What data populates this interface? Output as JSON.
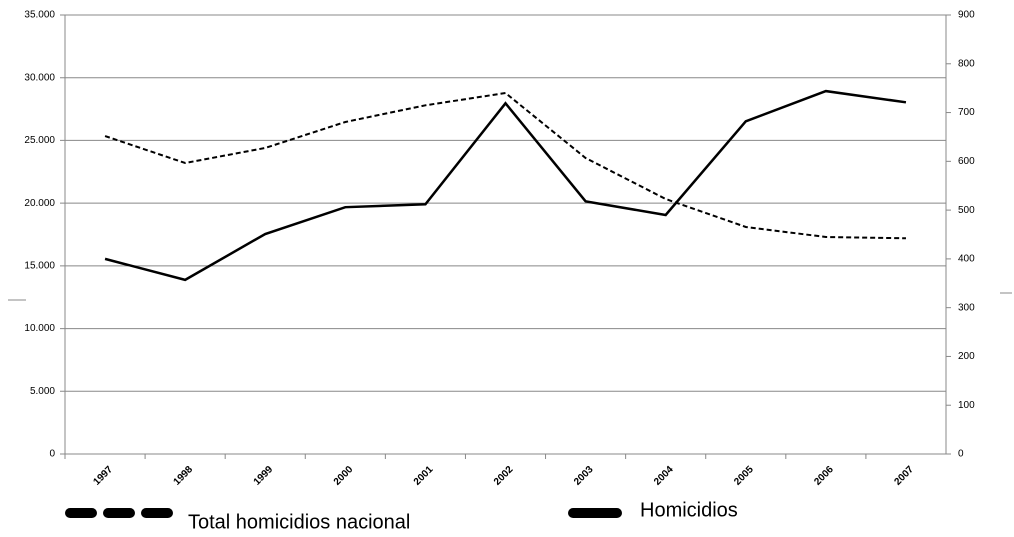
{
  "chart_data": {
    "type": "line",
    "categories": [
      "1997",
      "1998",
      "1999",
      "2000",
      "2001",
      "2002",
      "2003",
      "2004",
      "2005",
      "2006",
      "2007"
    ],
    "series": [
      {
        "name": "Total homicidios nacional",
        "color": "#000000",
        "dash": true,
        "axis": "y",
        "values": [
          25350,
          23200,
          24400,
          26470,
          27800,
          28780,
          23600,
          20330,
          18100,
          17300,
          17200
        ]
      },
      {
        "name": "Homicidios",
        "color": "#000000",
        "dash": false,
        "axis": "y2",
        "values": [
          400,
          357,
          451,
          506,
          512,
          719,
          518,
          490,
          682,
          744,
          721
        ]
      }
    ],
    "ylim": [
      0,
      35000
    ],
    "yticks": [
      0,
      {
        "value": 5000,
        "label": "5.000"
      },
      {
        "value": 10000,
        "label": "10.000"
      },
      {
        "value": 15000,
        "label": "15.000"
      },
      {
        "value": 20000,
        "label": "20.000"
      },
      {
        "value": 25000,
        "label": "25.000"
      },
      {
        "value": 30000,
        "label": "30.000"
      },
      {
        "value": 35000,
        "label": "35.000"
      }
    ],
    "y2lim": [
      0,
      900
    ],
    "y2ticks": [
      0,
      100,
      200,
      300,
      400,
      500,
      600,
      700,
      800,
      900
    ],
    "grid": true
  }
}
